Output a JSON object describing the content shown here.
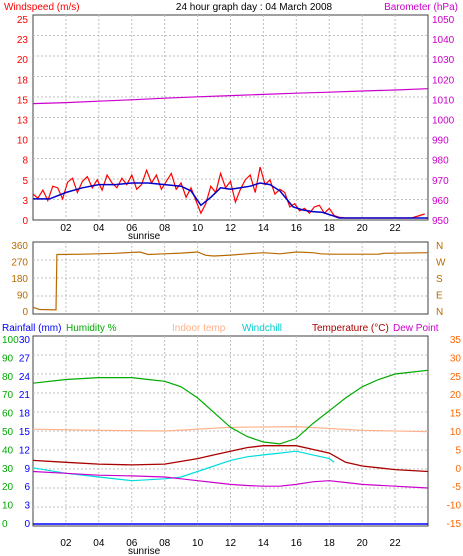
{
  "chart_data": [
    {
      "type": "line",
      "title": "24 hour graph day : 04 March 2008",
      "left_axis_label": "Windspeed (m/s)",
      "right_axis_label": "Barometer (hPa)",
      "left_ticks": [
        "25",
        "23",
        "20",
        "18",
        "15",
        "13",
        "10",
        "8",
        "5",
        "3",
        "0"
      ],
      "left_ylim": [
        0,
        25
      ],
      "right_ticks": [
        "1050",
        "1040",
        "1030",
        "1020",
        "1010",
        "1000",
        "990",
        "980",
        "970",
        "960",
        "950"
      ],
      "right_ylim": [
        950,
        1050
      ],
      "x_ticks": [
        "02",
        "04",
        "06",
        "08",
        "10",
        "12",
        "14",
        "16",
        "18",
        "20",
        "22"
      ],
      "x_note": "sunrise",
      "series": [
        {
          "values": [
            [
              0,
              3
            ],
            [
              0.3,
              2.5
            ],
            [
              0.6,
              3.5
            ],
            [
              0.9,
              2.2
            ],
            [
              1.2,
              4
            ],
            [
              1.5,
              3.8
            ],
            [
              1.8,
              2.4
            ],
            [
              2.1,
              4.5
            ],
            [
              2.4,
              5
            ],
            [
              2.7,
              3.2
            ],
            [
              3,
              4.6
            ],
            [
              3.3,
              5.2
            ],
            [
              3.6,
              3.8
            ],
            [
              3.9,
              4.8
            ],
            [
              4.2,
              3.5
            ],
            [
              4.5,
              5.4
            ],
            [
              4.8,
              4.4
            ],
            [
              5.1,
              3.8
            ],
            [
              5.4,
              5
            ],
            [
              5.7,
              4.2
            ],
            [
              6,
              5.4
            ],
            [
              6.3,
              3.6
            ],
            [
              6.6,
              4.2
            ],
            [
              6.9,
              6
            ],
            [
              7.2,
              4.4
            ],
            [
              7.5,
              5.4
            ],
            [
              7.8,
              3.6
            ],
            [
              8.1,
              4.6
            ],
            [
              8.4,
              5.6
            ],
            [
              8.7,
              3.6
            ],
            [
              9,
              4.4
            ],
            [
              9.3,
              2.6
            ],
            [
              9.6,
              3.8
            ],
            [
              9.9,
              2.2
            ],
            [
              10.2,
              0.6
            ],
            [
              10.5,
              1.8
            ],
            [
              10.8,
              4
            ],
            [
              11.1,
              3.2
            ],
            [
              11.4,
              5.6
            ],
            [
              11.7,
              3.8
            ],
            [
              12,
              4.6
            ],
            [
              12.3,
              2
            ],
            [
              12.6,
              3.6
            ],
            [
              12.9,
              4.8
            ],
            [
              13.2,
              5.4
            ],
            [
              13.5,
              3.2
            ],
            [
              13.8,
              6.4
            ],
            [
              14.1,
              4.2
            ],
            [
              14.4,
              4.8
            ],
            [
              14.7,
              3
            ],
            [
              15,
              3.6
            ],
            [
              15.3,
              3.2
            ],
            [
              15.6,
              1.4
            ],
            [
              15.9,
              1.8
            ],
            [
              16.2,
              0.9
            ],
            [
              16.5,
              1.2
            ],
            [
              16.8,
              0.6
            ],
            [
              17.1,
              1.4
            ],
            [
              17.4,
              1.6
            ],
            [
              17.7,
              0.6
            ],
            [
              18,
              1.2
            ],
            [
              18.3,
              0.3
            ],
            [
              18.6,
              0.1
            ],
            [
              19,
              0
            ],
            [
              20,
              0
            ],
            [
              21,
              0
            ],
            [
              22,
              0
            ],
            [
              23,
              0
            ],
            [
              23.8,
              0.5
            ]
          ]
        },
        {
          "values": [
            [
              0,
              2.4
            ],
            [
              1,
              2.4
            ],
            [
              2,
              3.2
            ],
            [
              3,
              3.8
            ],
            [
              4,
              4.2
            ],
            [
              5,
              4.2
            ],
            [
              6,
              4.4
            ],
            [
              7,
              4.4
            ],
            [
              8,
              4.2
            ],
            [
              9,
              4
            ],
            [
              9.6,
              3.4
            ],
            [
              10.2,
              1.6
            ],
            [
              10.8,
              2.6
            ],
            [
              11.4,
              3.8
            ],
            [
              12,
              3.6
            ],
            [
              12.6,
              3.8
            ],
            [
              13.2,
              4
            ],
            [
              13.8,
              4.4
            ],
            [
              14.4,
              4.2
            ],
            [
              15,
              3.4
            ],
            [
              15.4,
              2.4
            ],
            [
              15.8,
              1.4
            ],
            [
              16.4,
              1
            ],
            [
              17,
              0.8
            ],
            [
              17.6,
              0.7
            ],
            [
              18.2,
              0.3
            ],
            [
              18.6,
              0
            ],
            [
              19,
              0
            ],
            [
              24,
              0
            ]
          ]
        },
        {
          "values": [
            [
              0,
              1007.5
            ],
            [
              2,
              1008
            ],
            [
              4,
              1008.7
            ],
            [
              6,
              1009.4
            ],
            [
              8,
              1010.2
            ],
            [
              10,
              1010.9
            ],
            [
              12,
              1011.5
            ],
            [
              14,
              1012.1
            ],
            [
              16,
              1012.7
            ],
            [
              18,
              1013.2
            ],
            [
              20,
              1013.8
            ],
            [
              22,
              1014.3
            ],
            [
              24,
              1015
            ]
          ]
        }
      ]
    },
    {
      "type": "line",
      "left_ticks": [
        "360",
        "270",
        "180",
        "90",
        "0"
      ],
      "left_ylim": [
        0,
        360
      ],
      "right_ticks": [
        "N",
        "W",
        "S",
        "E",
        "N"
      ],
      "x_ticks": [
        "02",
        "04",
        "06",
        "08",
        "10",
        "12",
        "14",
        "16",
        "18",
        "20",
        "22"
      ],
      "series": [
        {
          "values": [
            [
              0,
              20
            ],
            [
              0.4,
              8
            ],
            [
              1.4,
              6
            ],
            [
              1.45,
              308
            ],
            [
              3,
              310
            ],
            [
              5,
              315
            ],
            [
              6.5,
              322
            ],
            [
              7,
              308
            ],
            [
              8,
              312
            ],
            [
              9,
              316
            ],
            [
              10,
              322
            ],
            [
              10.5,
              304
            ],
            [
              11,
              300
            ],
            [
              12,
              305
            ],
            [
              13,
              312
            ],
            [
              14,
              318
            ],
            [
              15,
              312
            ],
            [
              16,
              322
            ],
            [
              17,
              318
            ],
            [
              17.5,
              312
            ],
            [
              18.2,
              310
            ],
            [
              21,
              310
            ],
            [
              21.3,
              315
            ],
            [
              24,
              318
            ]
          ]
        }
      ]
    },
    {
      "type": "line",
      "legend": [
        "Rainfall (mm)",
        "Humidity %",
        "Indoor temp",
        "Windchill",
        "Temperature (°C)",
        "Dew Point"
      ],
      "rain_ticks": [
        "30",
        "27",
        "24",
        "21",
        "18",
        "15",
        "12",
        "9",
        "6",
        "3",
        "0"
      ],
      "humidity_ticks": [
        "100",
        "90",
        "80",
        "70",
        "60",
        "50",
        "40",
        "30",
        "20",
        "10",
        "0"
      ],
      "right_ticks": [
        "35",
        "30",
        "25",
        "20",
        "15",
        "10",
        "5",
        "0",
        "-5",
        "-10",
        "-15"
      ],
      "humidity_ylim": [
        0,
        100
      ],
      "temp_ylim": [
        -15,
        35
      ],
      "x_ticks": [
        "02",
        "04",
        "06",
        "08",
        "10",
        "12",
        "14",
        "16",
        "18",
        "20",
        "22"
      ],
      "x_note": "sunrise",
      "series": [
        {
          "name": "Humidity %",
          "values": [
            [
              0,
              76
            ],
            [
              2,
              78
            ],
            [
              4,
              79
            ],
            [
              6,
              79
            ],
            [
              7,
              78
            ],
            [
              8,
              77
            ],
            [
              9,
              74
            ],
            [
              10,
              68
            ],
            [
              11,
              60
            ],
            [
              12,
              52
            ],
            [
              13,
              47
            ],
            [
              14,
              44
            ],
            [
              15,
              43
            ],
            [
              16,
              46
            ],
            [
              17,
              54
            ],
            [
              18,
              61
            ],
            [
              19,
              68
            ],
            [
              20,
              74
            ],
            [
              21,
              78
            ],
            [
              22,
              81
            ],
            [
              23,
              82
            ],
            [
              24,
              83
            ]
          ]
        },
        {
          "name": "Indoor temp",
          "values": [
            [
              0,
              10.5
            ],
            [
              4,
              10.2
            ],
            [
              8,
              10
            ],
            [
              12,
              11
            ],
            [
              16,
              11.2
            ],
            [
              20,
              10.2
            ],
            [
              24,
              9.8
            ]
          ]
        },
        {
          "name": "Windchill",
          "values": [
            [
              0,
              0
            ],
            [
              2,
              -1.5
            ],
            [
              4,
              -2.5
            ],
            [
              6,
              -3.5
            ],
            [
              8,
              -3
            ],
            [
              9,
              -2.5
            ],
            [
              10,
              -1
            ],
            [
              11,
              0.5
            ],
            [
              12,
              2
            ],
            [
              13,
              3
            ],
            [
              14,
              3.5
            ],
            [
              15,
              4
            ],
            [
              16,
              4.5
            ],
            [
              17,
              3.5
            ],
            [
              18,
              2.5
            ],
            [
              18.3,
              1.5
            ]
          ]
        },
        {
          "name": "Temperature (°C)",
          "values": [
            [
              0,
              2
            ],
            [
              2,
              1.5
            ],
            [
              4,
              1
            ],
            [
              6,
              0.8
            ],
            [
              8,
              1
            ],
            [
              10,
              2.5
            ],
            [
              11,
              3.5
            ],
            [
              12,
              4.5
            ],
            [
              13,
              5.5
            ],
            [
              14,
              6
            ],
            [
              15,
              6
            ],
            [
              16,
              6
            ],
            [
              17,
              5
            ],
            [
              18,
              4
            ],
            [
              19,
              1.5
            ],
            [
              20,
              0.5
            ],
            [
              22,
              -0.5
            ],
            [
              24,
              -1
            ]
          ]
        },
        {
          "name": "Dew Point",
          "values": [
            [
              0,
              -1
            ],
            [
              2,
              -1.5
            ],
            [
              4,
              -2
            ],
            [
              6,
              -2.2
            ],
            [
              8,
              -2.5
            ],
            [
              9,
              -3
            ],
            [
              10,
              -3.5
            ],
            [
              11,
              -4
            ],
            [
              12,
              -4.5
            ],
            [
              13,
              -4.8
            ],
            [
              14,
              -5
            ],
            [
              15,
              -5
            ],
            [
              16,
              -4.5
            ],
            [
              17,
              -3.8
            ],
            [
              18,
              -3.5
            ],
            [
              19,
              -4
            ],
            [
              20,
              -4.5
            ],
            [
              22,
              -5
            ],
            [
              24,
              -5.5
            ]
          ]
        }
      ]
    }
  ],
  "colors": {
    "wind_gust": "#ff0000",
    "wind_avg": "#0000cc",
    "barometer": "#cc00cc",
    "direction": "#b86a00",
    "rainfall": "#0000ff",
    "humidity": "#00aa00",
    "indoor": "#ffb089",
    "windchill": "#00dddd",
    "temperature": "#aa0000",
    "dewpoint": "#cc00cc",
    "right_temp_axis": "#ff6600",
    "grid": "#c0c0c0"
  }
}
